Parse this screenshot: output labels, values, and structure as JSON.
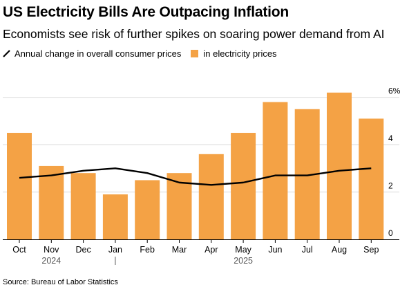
{
  "title": "US Electricity Bills Are Outpacing Inflation",
  "subtitle": "Economists see risk of further spikes on soaring power demand from AI",
  "legend": {
    "line_label": "Annual change in overall consumer prices",
    "bar_label": "in electricity prices"
  },
  "source": "Source: Bureau of Labor Statistics",
  "colors": {
    "bar": "#f4a245",
    "line": "#000000",
    "grid": "#d9d9d9",
    "axis": "#000000"
  },
  "chart_data": {
    "type": "bar",
    "categories": [
      "Oct",
      "Nov",
      "Dec",
      "Jan",
      "Feb",
      "Mar",
      "Apr",
      "May",
      "Jun",
      "Jul",
      "Aug",
      "Sep"
    ],
    "year_labels": [
      {
        "label": "2024",
        "under": "Nov"
      },
      {
        "label": "2025",
        "under": "May"
      }
    ],
    "series": [
      {
        "name": "in electricity prices",
        "kind": "bar",
        "values": [
          4.5,
          3.1,
          2.8,
          1.9,
          2.5,
          2.8,
          3.6,
          4.5,
          5.8,
          5.5,
          6.2,
          5.1
        ]
      },
      {
        "name": "Annual change in overall consumer prices",
        "kind": "line",
        "values": [
          2.6,
          2.7,
          2.9,
          3.0,
          2.8,
          2.4,
          2.3,
          2.4,
          2.7,
          2.7,
          2.9,
          3.0
        ]
      }
    ],
    "y_ticks": [
      "0",
      "2",
      "4",
      "6%"
    ],
    "ylim": [
      0,
      6.4
    ],
    "grid": true,
    "legend_position": "top-left"
  }
}
